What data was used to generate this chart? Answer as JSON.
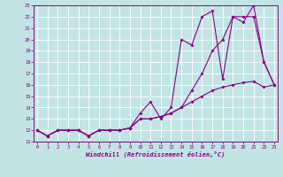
{
  "xlabel": "Windchill (Refroidissement éolien,°C)",
  "xlim_min": -0.3,
  "xlim_max": 23.3,
  "ylim_min": 11,
  "ylim_max": 23,
  "xticks": [
    0,
    1,
    2,
    3,
    4,
    5,
    6,
    7,
    8,
    9,
    10,
    11,
    12,
    13,
    14,
    15,
    16,
    17,
    18,
    19,
    20,
    21,
    22,
    23
  ],
  "yticks": [
    11,
    12,
    13,
    14,
    15,
    16,
    17,
    18,
    19,
    20,
    21,
    22,
    23
  ],
  "bg_color": "#c2e4e4",
  "line_color": "#880088",
  "line1_y": [
    12,
    11.5,
    12,
    12,
    12,
    11.5,
    12,
    12,
    12,
    12.2,
    13,
    13,
    13.2,
    13.5,
    14,
    14.5,
    15,
    15.5,
    15.8,
    16,
    16.2,
    16.3,
    15.8,
    16
  ],
  "line2_y": [
    12,
    11.5,
    12,
    12,
    12,
    11.5,
    12,
    12,
    12,
    12.2,
    13,
    13,
    13.2,
    13.5,
    14,
    15.5,
    17,
    19,
    20,
    22,
    22,
    22,
    18,
    16
  ],
  "line3_y": [
    12,
    11.5,
    12,
    12,
    12,
    11.5,
    12,
    12,
    12,
    12.2,
    13.5,
    14.5,
    13,
    14,
    20,
    19.5,
    22,
    22.5,
    16.5,
    22,
    21.5,
    23,
    18,
    16
  ]
}
